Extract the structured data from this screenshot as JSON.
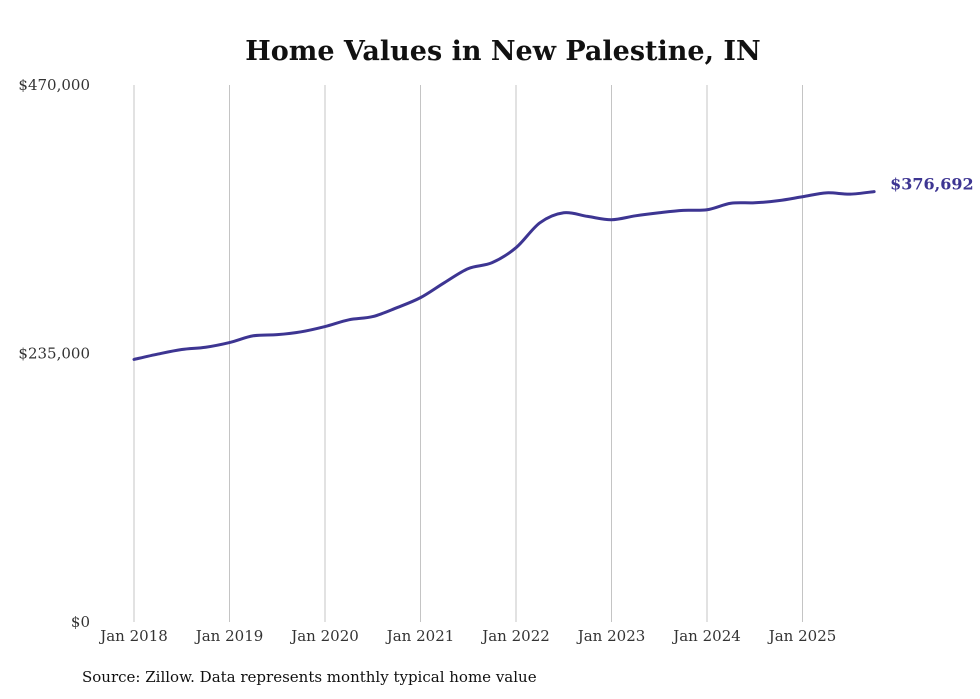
{
  "chart_data": {
    "type": "line",
    "title": "Home Values in New Palestine, IN",
    "xlabel": "",
    "ylabel": "",
    "ylim": [
      0,
      470000
    ],
    "yticks": [
      {
        "value": 0,
        "label": "$0"
      },
      {
        "value": 235000,
        "label": "$235,000"
      },
      {
        "value": 470000,
        "label": "$470,000"
      }
    ],
    "xticks": [
      {
        "year": 2018,
        "label": "Jan 2018"
      },
      {
        "year": 2019,
        "label": "Jan 2019"
      },
      {
        "year": 2020,
        "label": "Jan 2020"
      },
      {
        "year": 2021,
        "label": "Jan 2021"
      },
      {
        "year": 2022,
        "label": "Jan 2022"
      },
      {
        "year": 2023,
        "label": "Jan 2023"
      },
      {
        "year": 2024,
        "label": "Jan 2024"
      },
      {
        "year": 2025,
        "label": "Jan 2025"
      }
    ],
    "grid": "vertical",
    "series": [
      {
        "name": "Typical home value",
        "color": "#3d3592",
        "x": [
          "2018-01",
          "2018-04",
          "2018-07",
          "2018-10",
          "2019-01",
          "2019-04",
          "2019-07",
          "2019-10",
          "2020-01",
          "2020-04",
          "2020-07",
          "2020-10",
          "2021-01",
          "2021-04",
          "2021-07",
          "2021-10",
          "2022-01",
          "2022-04",
          "2022-07",
          "2022-10",
          "2023-01",
          "2023-04",
          "2023-07",
          "2023-10",
          "2024-01",
          "2024-04",
          "2024-07",
          "2024-10",
          "2025-01",
          "2025-04",
          "2025-07",
          "2025-10"
        ],
        "values": [
          229800,
          234500,
          238500,
          240500,
          244600,
          250500,
          251500,
          254000,
          258600,
          264500,
          267300,
          275000,
          283900,
          297000,
          309300,
          314500,
          327600,
          349400,
          358200,
          355000,
          352100,
          355500,
          358200,
          360300,
          360800,
          366500,
          366900,
          368800,
          372200,
          375600,
          374500,
          376692
        ]
      }
    ],
    "end_label": "$376,692"
  },
  "footer": {
    "source": "Source: Zillow. Data represents monthly typical home value"
  }
}
